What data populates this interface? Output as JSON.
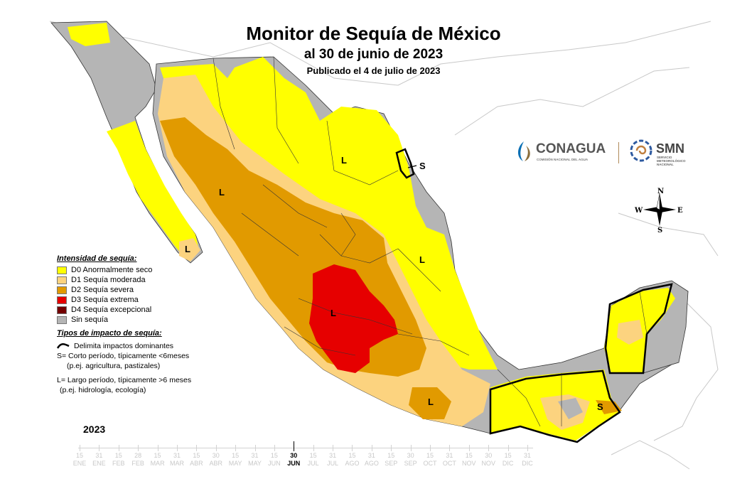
{
  "header": {
    "title": "Monitor de Sequía de México",
    "subtitle": "al 30 de junio de 2023",
    "published": "Publicado el 4 de julio de 2023"
  },
  "colors": {
    "sea": "#ffffff",
    "no_drought": "#b5b5b5",
    "d0": "#ffff00",
    "d1": "#fcd37f",
    "d2": "#e19a00",
    "d3": "#e60000",
    "d4": "#730000",
    "border": "#000000"
  },
  "legend": {
    "title": "Intensidad de sequía:",
    "items": [
      {
        "label": "D0 Anormalmente seco",
        "color": "#ffff00"
      },
      {
        "label": "D1 Sequía moderada",
        "color": "#fcd37f"
      },
      {
        "label": "D2 Sequía severa",
        "color": "#e19a00"
      },
      {
        "label": "D3 Sequía extrema",
        "color": "#e60000"
      },
      {
        "label": "D4 Sequía excepcional",
        "color": "#730000"
      },
      {
        "label": "Sin sequía",
        "color": "#b5b5b5"
      }
    ]
  },
  "impact": {
    "title": "Tipos de impacto de sequía:",
    "delimits": "Delimita impactos dominantes",
    "short_1": "S= Corto período, típicamente <6meses",
    "short_2": "(p.ej. agricultura, pastizales)",
    "long_1": "L= Largo período, típicamente >6 meses",
    "long_2": "(p.ej. hidrología, ecología)"
  },
  "map_labels": {
    "L": "L",
    "S": "S"
  },
  "logos": {
    "conagua": "CONAGUA",
    "conagua_sub": "COMISIÓN NACIONAL DEL AGUA",
    "smn": "SMN",
    "smn_sub_1": "SERVICIO",
    "smn_sub_2": "METEOROLÓGICO",
    "smn_sub_3": "NACIONAL"
  },
  "compass": {
    "n": "N",
    "s": "S",
    "e": "E",
    "w": "W"
  },
  "timeline": {
    "year": "2023",
    "ticks": [
      {
        "day": "15",
        "month": "ENE"
      },
      {
        "day": "31",
        "month": "ENE"
      },
      {
        "day": "15",
        "month": "FEB"
      },
      {
        "day": "28",
        "month": "FEB"
      },
      {
        "day": "15",
        "month": "MAR"
      },
      {
        "day": "31",
        "month": "MAR"
      },
      {
        "day": "15",
        "month": "ABR"
      },
      {
        "day": "30",
        "month": "ABR"
      },
      {
        "day": "15",
        "month": "MAY"
      },
      {
        "day": "31",
        "month": "MAY"
      },
      {
        "day": "15",
        "month": "JUN"
      },
      {
        "day": "30",
        "month": "JUN",
        "current": true
      },
      {
        "day": "15",
        "month": "JUL"
      },
      {
        "day": "31",
        "month": "JUL"
      },
      {
        "day": "15",
        "month": "AGO"
      },
      {
        "day": "31",
        "month": "AGO"
      },
      {
        "day": "15",
        "month": "SEP"
      },
      {
        "day": "30",
        "month": "SEP"
      },
      {
        "day": "15",
        "month": "OCT"
      },
      {
        "day": "31",
        "month": "OCT"
      },
      {
        "day": "15",
        "month": "NOV"
      },
      {
        "day": "30",
        "month": "NOV"
      },
      {
        "day": "15",
        "month": "DIC"
      },
      {
        "day": "31",
        "month": "DIC"
      }
    ]
  }
}
